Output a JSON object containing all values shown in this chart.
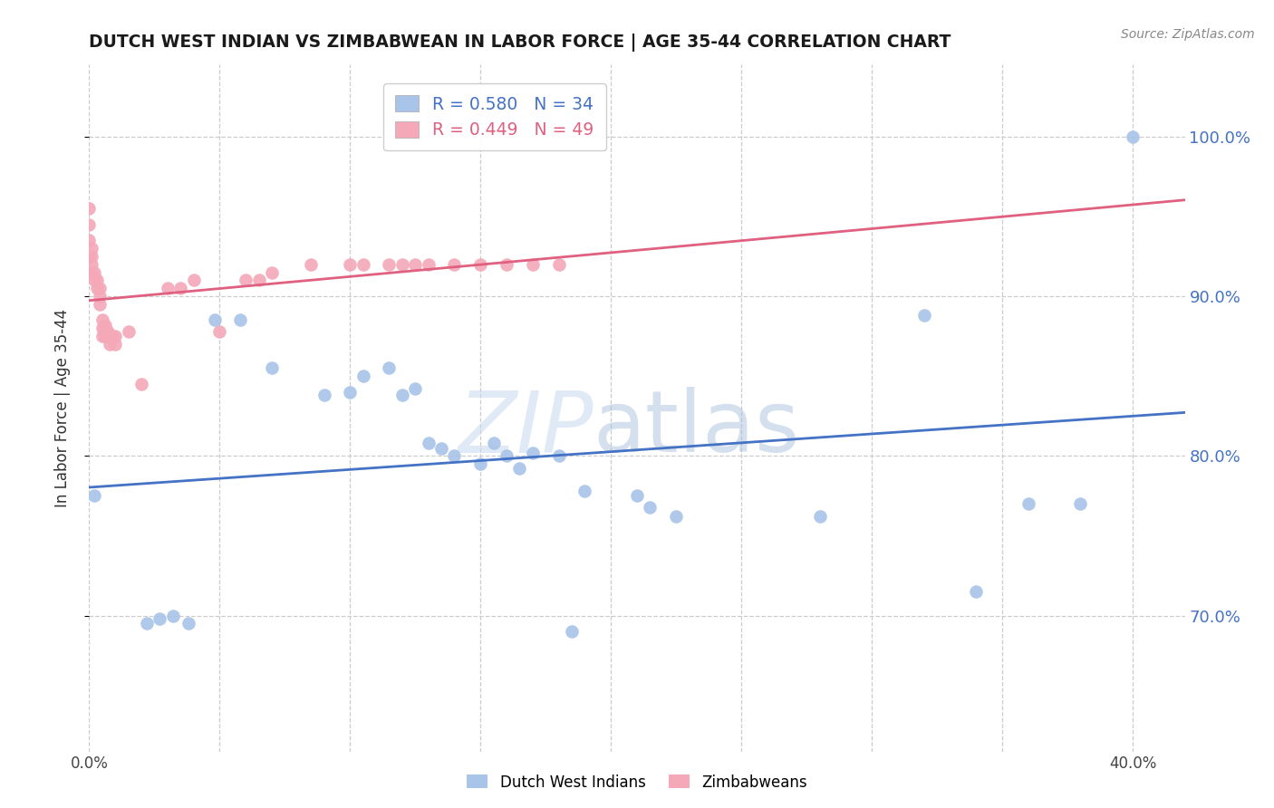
{
  "title": "DUTCH WEST INDIAN VS ZIMBABWEAN IN LABOR FORCE | AGE 35-44 CORRELATION CHART",
  "source": "Source: ZipAtlas.com",
  "ylabel": "In Labor Force | Age 35-44",
  "legend_labels": [
    "Dutch West Indians",
    "Zimbabweans"
  ],
  "blue_r": 0.58,
  "blue_n": 34,
  "pink_r": 0.449,
  "pink_n": 49,
  "blue_color": "#a8c4e8",
  "pink_color": "#f4a8b8",
  "blue_line_color": "#4472c4",
  "pink_line_color": "#e06080",
  "legend_text_blue": "#4472c4",
  "legend_text_pink": "#e06080",
  "xmin": 0.0,
  "xmax": 0.42,
  "ymin": 0.615,
  "ymax": 1.045,
  "yticks": [
    0.7,
    0.8,
    0.9,
    1.0
  ],
  "ytick_labels_right": [
    "70.0%",
    "80.0%",
    "90.0%",
    "100.0%"
  ],
  "xticks": [
    0.0,
    0.05,
    0.1,
    0.15,
    0.2,
    0.25,
    0.3,
    0.35,
    0.4
  ],
  "xtick_labels": [
    "0.0%",
    "",
    "",
    "",
    "",
    "",
    "",
    "",
    "40.0%"
  ],
  "grid_color": "#cccccc",
  "background_color": "#ffffff",
  "watermark_zip": "ZIP",
  "watermark_atlas": "atlas",
  "blue_x": [
    0.002,
    0.022,
    0.027,
    0.032,
    0.038,
    0.048,
    0.058,
    0.07,
    0.09,
    0.1,
    0.105,
    0.115,
    0.12,
    0.125,
    0.13,
    0.135,
    0.14,
    0.15,
    0.155,
    0.16,
    0.165,
    0.17,
    0.18,
    0.185,
    0.19,
    0.21,
    0.215,
    0.225,
    0.28,
    0.32,
    0.34,
    0.36,
    0.38,
    0.4
  ],
  "blue_y": [
    0.775,
    0.695,
    0.698,
    0.7,
    0.695,
    0.885,
    0.885,
    0.855,
    0.838,
    0.84,
    0.85,
    0.855,
    0.838,
    0.842,
    0.808,
    0.805,
    0.8,
    0.795,
    0.808,
    0.8,
    0.792,
    0.802,
    0.8,
    0.69,
    0.778,
    0.775,
    0.768,
    0.762,
    0.762,
    0.888,
    0.715,
    0.77,
    0.77,
    1.0
  ],
  "pink_x": [
    0.0,
    0.0,
    0.0,
    0.0,
    0.001,
    0.001,
    0.001,
    0.001,
    0.002,
    0.002,
    0.003,
    0.003,
    0.004,
    0.004,
    0.004,
    0.005,
    0.005,
    0.005,
    0.006,
    0.006,
    0.006,
    0.007,
    0.007,
    0.008,
    0.008,
    0.009,
    0.01,
    0.01,
    0.015,
    0.02,
    0.03,
    0.035,
    0.04,
    0.05,
    0.06,
    0.065,
    0.07,
    0.085,
    0.1,
    0.105,
    0.115,
    0.12,
    0.125,
    0.13,
    0.14,
    0.15,
    0.16,
    0.17,
    0.18
  ],
  "pink_y": [
    0.925,
    0.935,
    0.945,
    0.955,
    0.915,
    0.92,
    0.925,
    0.93,
    0.91,
    0.915,
    0.905,
    0.91,
    0.895,
    0.9,
    0.905,
    0.875,
    0.88,
    0.885,
    0.875,
    0.88,
    0.882,
    0.875,
    0.878,
    0.87,
    0.875,
    0.875,
    0.87,
    0.875,
    0.878,
    0.845,
    0.905,
    0.905,
    0.91,
    0.878,
    0.91,
    0.91,
    0.915,
    0.92,
    0.92,
    0.92,
    0.92,
    0.92,
    0.92,
    0.92,
    0.92,
    0.92,
    0.92,
    0.92,
    0.92
  ]
}
